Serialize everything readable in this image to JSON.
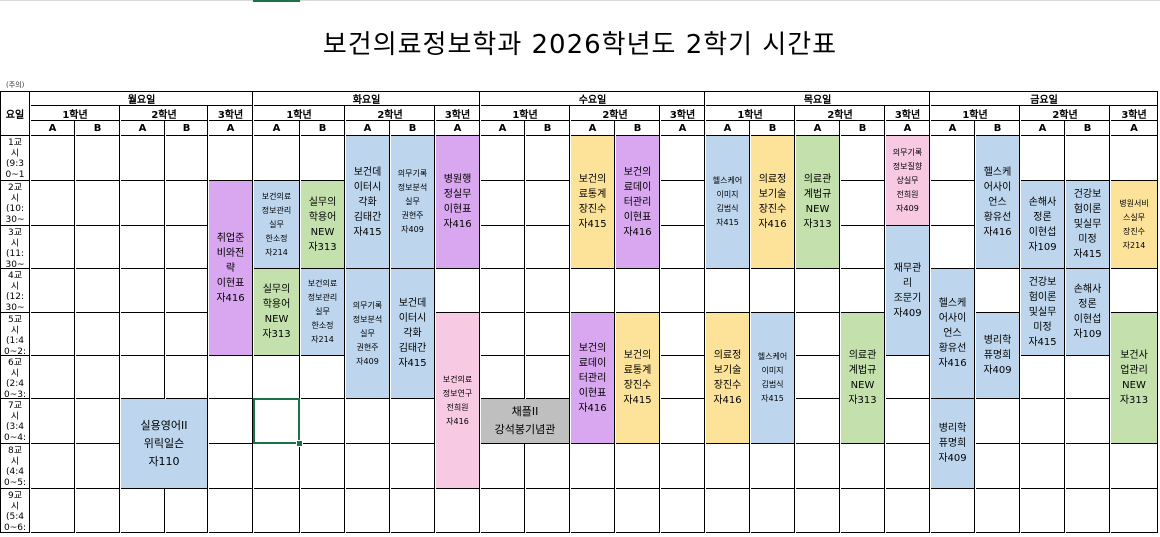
{
  "title": "보건의료정보학과 2026학년도 2학기 시간표",
  "corner": {
    "note": "(주의)",
    "label": "요일"
  },
  "days": [
    {
      "name": "월요일",
      "grades": [
        {
          "name": "1학년",
          "sections": [
            "A",
            "B"
          ]
        },
        {
          "name": "2학년",
          "sections": [
            "A",
            "B"
          ]
        },
        {
          "name": "3학년",
          "sections": [
            "A"
          ]
        }
      ]
    },
    {
      "name": "화요일",
      "grades": [
        {
          "name": "1학년",
          "sections": [
            "A",
            "B"
          ]
        },
        {
          "name": "2학년",
          "sections": [
            "A",
            "B"
          ]
        },
        {
          "name": "3학년",
          "sections": [
            "A"
          ]
        }
      ]
    },
    {
      "name": "수요일",
      "grades": [
        {
          "name": "1학년",
          "sections": [
            "A",
            "B"
          ]
        },
        {
          "name": "2학년",
          "sections": [
            "A",
            "B"
          ]
        },
        {
          "name": "3학년",
          "sections": [
            "A"
          ]
        }
      ]
    },
    {
      "name": "목요일",
      "grades": [
        {
          "name": "1학년",
          "sections": [
            "A",
            "B"
          ]
        },
        {
          "name": "2학년",
          "sections": [
            "A",
            "B"
          ]
        },
        {
          "name": "3학년",
          "sections": [
            "A"
          ]
        }
      ]
    },
    {
      "name": "금요일",
      "grades": [
        {
          "name": "1학년",
          "sections": [
            "A",
            "B"
          ]
        },
        {
          "name": "2학년",
          "sections": [
            "A",
            "B"
          ]
        },
        {
          "name": "3학년",
          "sections": [
            "A"
          ]
        }
      ]
    }
  ],
  "periods": [
    [
      "1교",
      "시",
      "(9:3",
      "0~1"
    ],
    [
      "2교",
      "시",
      "(10:",
      "30~"
    ],
    [
      "3교",
      "시",
      "(11:",
      "30~"
    ],
    [
      "4교",
      "시",
      "(12:",
      "30~"
    ],
    [
      "5교",
      "시",
      "(1:4",
      "0~2:"
    ],
    [
      "6교",
      "시",
      "(2:4",
      "0~3:"
    ],
    [
      "7교",
      "시",
      "(3:4",
      "0~4:"
    ],
    [
      "8교",
      "시",
      "(4:4",
      "0~5:"
    ],
    [
      "9교",
      "시",
      "(5:4",
      "0~6:"
    ]
  ],
  "colors": {
    "purple": "#d9a6f0",
    "green": "#c4e1ad",
    "blue": "#bdd6ee",
    "yellow": "#fde29a",
    "pink": "#f7c9e3",
    "gray": "#bfbfbf"
  },
  "courses": [
    {
      "col": 4,
      "row": 1,
      "span": 4,
      "color": "purple",
      "lines": [
        "취업준",
        "비와전",
        "략",
        "이현표",
        "자416"
      ]
    },
    {
      "col": 5,
      "row": 1,
      "span": 2,
      "color": "blue",
      "lines": [
        "보건의료",
        "정보관리",
        "실무",
        "한소정",
        "자214"
      ],
      "size": "small"
    },
    {
      "col": 6,
      "row": 1,
      "span": 2,
      "color": "green",
      "lines": [
        "실무의",
        "학용어",
        "NEW",
        "자313"
      ]
    },
    {
      "col": 5,
      "row": 3,
      "span": 2,
      "color": "green",
      "lines": [
        "실무의",
        "학용어",
        "NEW",
        "자313"
      ]
    },
    {
      "col": 6,
      "row": 3,
      "span": 2,
      "color": "blue",
      "lines": [
        "보건의료",
        "정보관리",
        "실무",
        "한소정",
        "자214"
      ],
      "size": "small"
    },
    {
      "col": 7,
      "row": 0,
      "span": 3,
      "color": "blue",
      "lines": [
        "보건데",
        "이터시",
        "각화",
        "김태간",
        "자415"
      ]
    },
    {
      "col": 8,
      "row": 0,
      "span": 3,
      "color": "blue",
      "lines": [
        "의무기록",
        "정보분석",
        "실무",
        "권현주",
        "자409"
      ],
      "size": "small"
    },
    {
      "col": 9,
      "row": 0,
      "span": 3,
      "color": "purple",
      "lines": [
        "병원행",
        "정실무",
        "이현표",
        "자416"
      ]
    },
    {
      "col": 7,
      "row": 3,
      "span": 3,
      "color": "blue",
      "lines": [
        "의무기록",
        "정보분석",
        "실무",
        "권현주",
        "자409"
      ],
      "size": "small"
    },
    {
      "col": 8,
      "row": 3,
      "span": 3,
      "color": "blue",
      "lines": [
        "보건데",
        "이터시",
        "각화",
        "김태간",
        "자415"
      ]
    },
    {
      "col": 9,
      "row": 4,
      "span": 4,
      "color": "pink",
      "lines": [
        "보건의료",
        "정보연구",
        "전희원",
        "자416"
      ],
      "size": "small"
    },
    {
      "col": 12,
      "row": 0,
      "span": 3,
      "color": "yellow",
      "lines": [
        "보건의",
        "료통계",
        "장진수",
        "자415"
      ]
    },
    {
      "col": 13,
      "row": 0,
      "span": 3,
      "color": "purple",
      "lines": [
        "보건의",
        "료데이",
        "터관리",
        "이현표",
        "자416"
      ]
    },
    {
      "col": 12,
      "row": 4,
      "span": 3,
      "color": "purple",
      "lines": [
        "보건의",
        "료데이",
        "터관리",
        "이현표",
        "자416"
      ]
    },
    {
      "col": 13,
      "row": 4,
      "span": 3,
      "color": "yellow",
      "lines": [
        "보건의",
        "료통계",
        "장진수",
        "자415"
      ]
    },
    {
      "col": 15,
      "row": 0,
      "span": 3,
      "color": "blue",
      "lines": [
        "헬스케어",
        "이미지",
        "김범식",
        "자415"
      ],
      "size": "small"
    },
    {
      "col": 16,
      "row": 0,
      "span": 3,
      "color": "yellow",
      "lines": [
        "의료정",
        "보기술",
        "장진수",
        "자416"
      ]
    },
    {
      "col": 17,
      "row": 0,
      "span": 3,
      "color": "green",
      "lines": [
        "의료관",
        "계법규",
        "NEW",
        "자313"
      ]
    },
    {
      "col": 19,
      "row": 0,
      "span": 2,
      "color": "pink",
      "lines": [
        "의무기록",
        "정보질향",
        "상실무",
        "전희원",
        "자409"
      ],
      "size": "small"
    },
    {
      "col": 19,
      "row": 2,
      "span": 3,
      "color": "blue",
      "lines": [
        "재무관",
        "리",
        "조문기",
        "자409"
      ]
    },
    {
      "col": 15,
      "row": 4,
      "span": 3,
      "color": "yellow",
      "lines": [
        "의료정",
        "보기술",
        "장진수",
        "자416"
      ]
    },
    {
      "col": 16,
      "row": 4,
      "span": 3,
      "color": "blue",
      "lines": [
        "헬스케어",
        "이미지",
        "김범식",
        "자415"
      ],
      "size": "small"
    },
    {
      "col": 18,
      "row": 4,
      "span": 3,
      "color": "green",
      "lines": [
        "의료관",
        "계법규",
        "NEW",
        "자313"
      ]
    },
    {
      "col": 21,
      "row": 0,
      "span": 3,
      "color": "blue",
      "lines": [
        "헬스케",
        "어사이",
        "언스",
        "황유선",
        "자416"
      ]
    },
    {
      "col": 22,
      "row": 1,
      "span": 2,
      "color": "blue",
      "lines": [
        "손해사",
        "정론",
        "이현섭",
        "자109"
      ]
    },
    {
      "col": 23,
      "row": 1,
      "span": 2,
      "color": "blue",
      "lines": [
        "건강보",
        "험이론",
        "및실무",
        "미정",
        "자415"
      ]
    },
    {
      "col": 24,
      "row": 1,
      "span": 2,
      "color": "yellow",
      "lines": [
        "병원서비",
        "스실무",
        "장진수",
        "자214"
      ],
      "size": "small"
    },
    {
      "col": 20,
      "row": 3,
      "span": 3,
      "color": "blue",
      "lines": [
        "헬스케",
        "어사이",
        "언스",
        "황유선",
        "자416"
      ]
    },
    {
      "col": 21,
      "row": 4,
      "span": 2,
      "color": "blue",
      "lines": [
        "병리학",
        "퓨명희",
        "자409"
      ]
    },
    {
      "col": 22,
      "row": 3,
      "span": 2,
      "color": "blue",
      "lines": [
        "건강보",
        "험이론",
        "및실무",
        "미정",
        "자415"
      ]
    },
    {
      "col": 23,
      "row": 3,
      "span": 2,
      "color": "blue",
      "lines": [
        "손해사",
        "정론",
        "이현섭",
        "자109"
      ]
    },
    {
      "col": 24,
      "row": 4,
      "span": 3,
      "color": "green",
      "lines": [
        "보건사",
        "업관리",
        "NEW",
        "자313"
      ]
    },
    {
      "col": 20,
      "row": 6,
      "span": 2,
      "color": "blue",
      "lines": [
        "병리학",
        "퓨명희",
        "자409"
      ]
    },
    {
      "col": 2,
      "row": 6,
      "span": 2,
      "colspan": 2,
      "color": "blue",
      "lines": [
        "실용영어II",
        "위릭일슨",
        "자110"
      ],
      "size": "wide"
    },
    {
      "col": 10,
      "row": 6,
      "span": 1,
      "colspan": 2,
      "color": "gray",
      "lines": [
        "채플II",
        "강석봉기념관"
      ],
      "size": "wide"
    }
  ]
}
